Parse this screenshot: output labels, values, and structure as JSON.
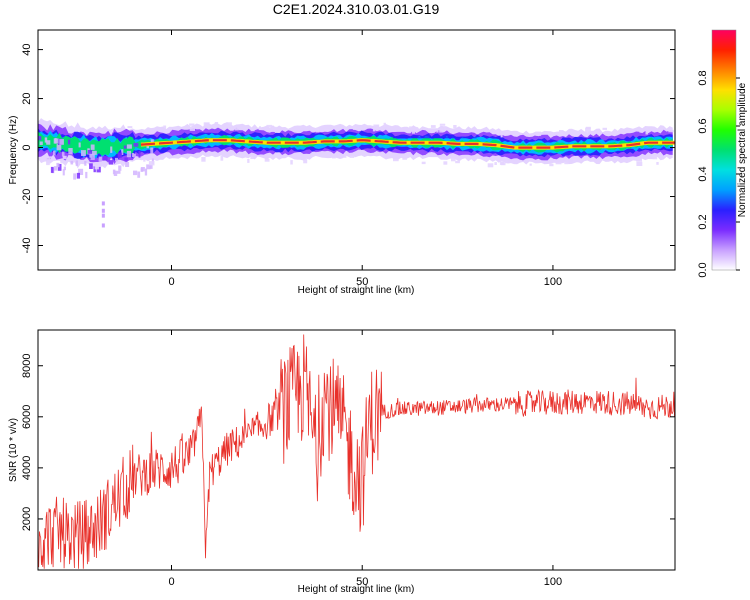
{
  "title": "C2E1.2024.310.03.01.G19",
  "colors": {
    "snr_line": "#e8302a",
    "ridge": "#e8302a",
    "axis": "#000000"
  },
  "chart_data": [
    {
      "type": "heatmap",
      "xlabel": "Height of straight line (km)",
      "ylabel": "Frequency (Hz)",
      "xlim": [
        -35,
        132
      ],
      "ylim": [
        -50,
        48
      ],
      "xticks": [
        "0",
        "50",
        "100"
      ],
      "yticks": [
        "40",
        "20",
        "0",
        "-20",
        "-40"
      ],
      "colorbar": {
        "label": "Normalized spectral amplitude",
        "range": [
          0.0,
          1.0
        ],
        "ticks": [
          "0.0",
          "0.2",
          "0.4",
          "0.6",
          "0.8"
        ],
        "colormap": [
          "#ffffff",
          "#c8a0ff",
          "#7a2cff",
          "#2a20ff",
          "#00a0ff",
          "#00e0e0",
          "#00e070",
          "#20ff00",
          "#a8ff00",
          "#ffe000",
          "#ff8000",
          "#ff2000",
          "#ff0060"
        ]
      },
      "ridge": {
        "x": [
          -35,
          -30,
          -25,
          -20,
          -15,
          -10,
          -5,
          0,
          5,
          10,
          15,
          20,
          25,
          30,
          35,
          40,
          45,
          50,
          55,
          60,
          65,
          70,
          75,
          80,
          85,
          90,
          95,
          100,
          105,
          110,
          115,
          120,
          125,
          130
        ],
        "y": [
          3,
          2,
          1,
          0,
          0.5,
          1,
          1.5,
          2,
          2.5,
          3,
          3,
          2.5,
          2,
          2,
          2,
          2.5,
          2.5,
          3,
          2.5,
          2,
          2,
          2,
          1.5,
          1.5,
          1,
          0,
          0,
          0,
          0.5,
          0.5,
          0.5,
          1,
          2,
          2
        ]
      }
    },
    {
      "type": "line",
      "xlabel": "Height of straight line (km)",
      "ylabel": "SNR (10 * v/v)",
      "xlim": [
        -35,
        132
      ],
      "ylim": [
        0,
        9400
      ],
      "xticks": [
        "0",
        "50",
        "100"
      ],
      "yticks": [
        "2000",
        "4000",
        "6000",
        "8000"
      ],
      "series": [
        {
          "x": [
            -35,
            -30,
            -25,
            -20,
            -15,
            -12,
            -10,
            -5,
            0,
            5,
            8,
            9,
            10,
            15,
            20,
            25,
            30,
            35,
            38,
            40,
            45,
            48,
            50,
            52,
            55,
            60,
            70,
            80,
            90,
            100,
            110,
            120,
            125,
            130,
            132
          ],
          "y": [
            1200,
            1500,
            1300,
            1600,
            2600,
            3200,
            3600,
            3900,
            4000,
            4500,
            6000,
            600,
            3800,
            4800,
            5200,
            5800,
            6400,
            7200,
            4500,
            6800,
            5500,
            4000,
            3500,
            5800,
            6200,
            6300,
            6350,
            6450,
            6500,
            6550,
            6600,
            6500,
            6350,
            6400,
            6500
          ]
        }
      ]
    }
  ]
}
